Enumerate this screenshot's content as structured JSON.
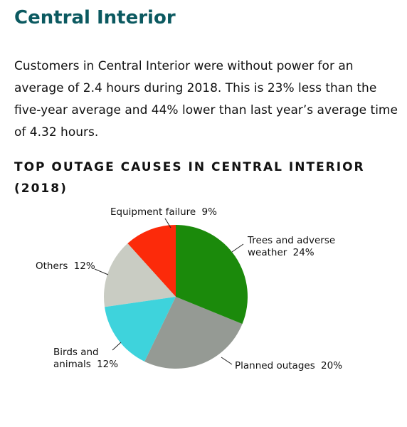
{
  "header": {
    "title": "Central Interior"
  },
  "paragraph": "Customers in Central Interior were without power for an average of 2.4 hours during 2018. This is 23% less than the five-year average and 44% lower than last year’s average time of 4.32 hours.",
  "chart_data": {
    "type": "pie",
    "title": "TOP OUTAGE CAUSES IN CENTRAL INTERIOR (2018)",
    "categories": [
      "Trees and adverse weather",
      "Planned outages",
      "Birds and animals",
      "Others",
      "Equipment failure"
    ],
    "values": [
      24,
      20,
      12,
      12,
      9
    ],
    "value_labels": [
      "24%",
      "20%",
      "12%",
      "12%",
      "9%"
    ],
    "colors": [
      "#1b8a0b",
      "#959a94",
      "#3ed3dc",
      "#c9ccc3",
      "#fc2a0a"
    ]
  }
}
